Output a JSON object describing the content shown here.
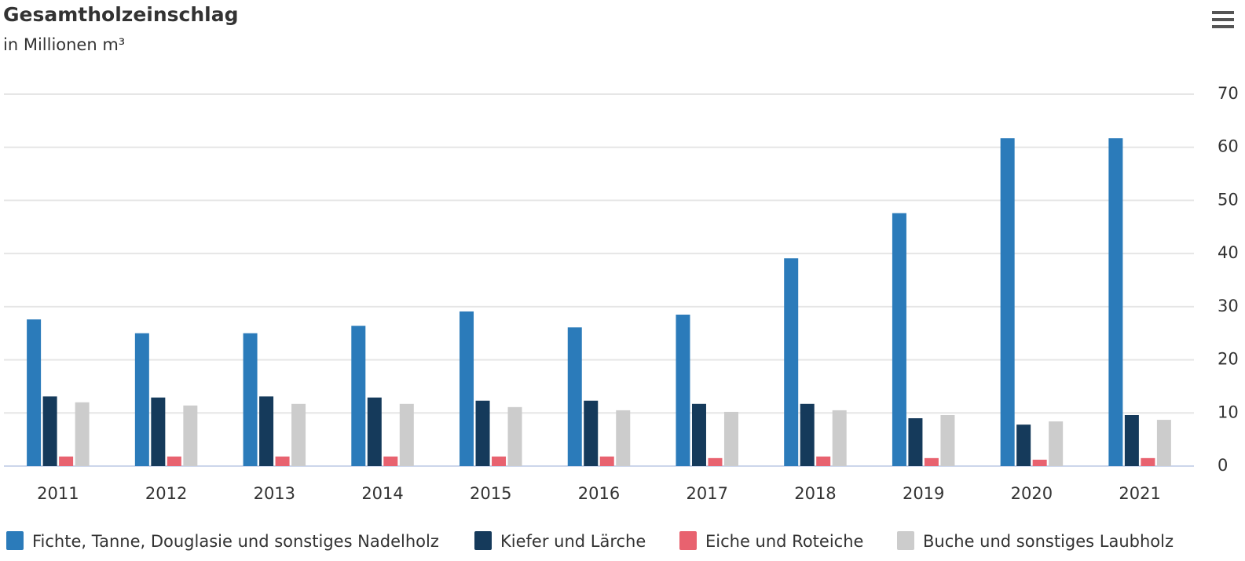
{
  "chart_data": {
    "type": "bar",
    "title": "Gesamtholzeinschlag",
    "subtitle": "in Millionen m³",
    "categories": [
      "2011",
      "2012",
      "2013",
      "2014",
      "2015",
      "2016",
      "2017",
      "2018",
      "2019",
      "2020",
      "2021"
    ],
    "series": [
      {
        "name": "Fichte, Tanne, Douglasie und sonstiges Nadelholz",
        "color": "#2b7bba",
        "values": [
          27.6,
          25.0,
          25.0,
          26.4,
          29.1,
          26.1,
          28.5,
          39.1,
          47.6,
          61.7,
          61.7
        ]
      },
      {
        "name": "Kiefer und Lärche",
        "color": "#153a5b",
        "values": [
          13.1,
          12.9,
          13.1,
          12.9,
          12.3,
          12.3,
          11.7,
          11.7,
          9.0,
          7.8,
          9.6
        ]
      },
      {
        "name": "Eiche und Roteiche",
        "color": "#e8626f",
        "values": [
          1.8,
          1.8,
          1.8,
          1.8,
          1.8,
          1.8,
          1.5,
          1.8,
          1.5,
          1.2,
          1.5
        ]
      },
      {
        "name": "Buche und sonstiges Laubholz",
        "color": "#cccccc",
        "values": [
          12.0,
          11.4,
          11.7,
          11.7,
          11.1,
          10.5,
          10.2,
          10.5,
          9.6,
          8.4,
          8.7
        ]
      }
    ],
    "ylim": [
      0,
      70
    ],
    "yticks": [
      0,
      10,
      20,
      30,
      40,
      50,
      60,
      70
    ],
    "grid": true,
    "legend": "bottom"
  }
}
